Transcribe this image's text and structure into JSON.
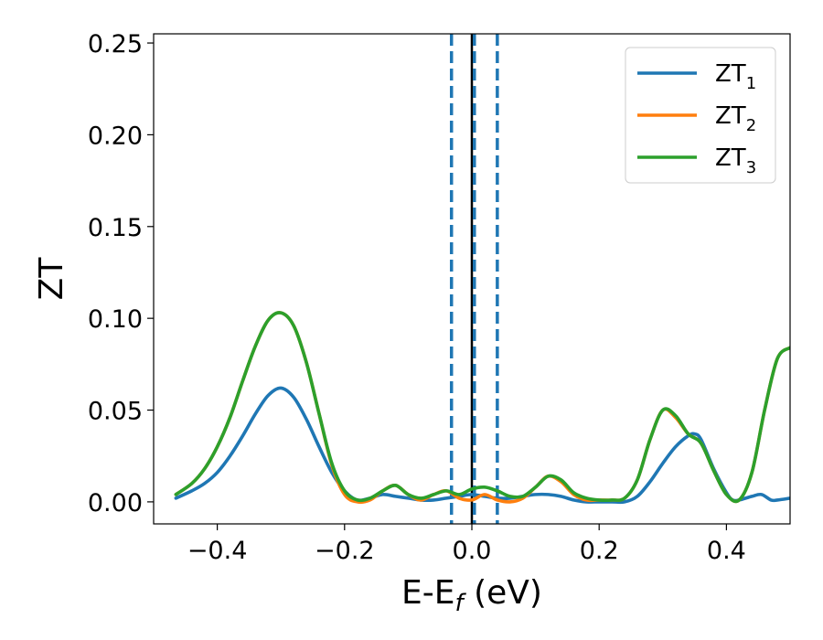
{
  "chart_data": {
    "type": "line",
    "title": "",
    "xlabel": {
      "base": "E-E",
      "sub": "f",
      "unit": " (eV)"
    },
    "ylabel": "ZT",
    "xlim": [
      -0.5,
      0.5
    ],
    "ylim": [
      -0.012,
      0.255
    ],
    "x_ticks": [
      -0.4,
      -0.2,
      0.0,
      0.2,
      0.4
    ],
    "x_tick_labels": [
      "−0.4",
      "−0.2",
      "0.0",
      "0.2",
      "0.4"
    ],
    "y_ticks": [
      0.0,
      0.05,
      0.1,
      0.15,
      0.2,
      0.25
    ],
    "y_tick_labels": [
      "0.00",
      "0.05",
      "0.10",
      "0.15",
      "0.20",
      "0.25"
    ],
    "grid": false,
    "legend_position": "top-right",
    "vertical_lines": [
      {
        "x": -0.032,
        "style": "dashed",
        "color": "#1f77b4"
      },
      {
        "x": 0.0,
        "style": "solid",
        "color": "#000000"
      },
      {
        "x": 0.004,
        "style": "dashed",
        "color": "#1f77b4"
      },
      {
        "x": 0.04,
        "style": "dashed",
        "color": "#1f77b4"
      }
    ],
    "series": [
      {
        "name": "ZT",
        "sub": "1",
        "color": "#1f77b4",
        "x": [
          -0.465,
          -0.44,
          -0.42,
          -0.4,
          -0.38,
          -0.36,
          -0.34,
          -0.32,
          -0.3,
          -0.28,
          -0.26,
          -0.24,
          -0.22,
          -0.2,
          -0.18,
          -0.16,
          -0.14,
          -0.12,
          -0.1,
          -0.08,
          -0.06,
          -0.04,
          -0.02,
          0.0,
          0.02,
          0.04,
          0.06,
          0.08,
          0.1,
          0.12,
          0.14,
          0.16,
          0.18,
          0.2,
          0.22,
          0.24,
          0.26,
          0.28,
          0.3,
          0.32,
          0.34,
          0.35,
          0.36,
          0.38,
          0.4,
          0.41,
          0.42,
          0.44,
          0.455,
          0.47,
          0.48,
          0.5
        ],
        "y": [
          0.002,
          0.006,
          0.01,
          0.016,
          0.025,
          0.036,
          0.048,
          0.058,
          0.062,
          0.057,
          0.045,
          0.03,
          0.016,
          0.006,
          0.001,
          0.002,
          0.004,
          0.003,
          0.002,
          0.001,
          0.001,
          0.002,
          0.003,
          0.004,
          0.003,
          0.002,
          0.002,
          0.003,
          0.004,
          0.004,
          0.003,
          0.001,
          0.0,
          0.0,
          0.0,
          0.0,
          0.003,
          0.011,
          0.021,
          0.03,
          0.036,
          0.037,
          0.034,
          0.018,
          0.005,
          0.001,
          0.001,
          0.003,
          0.004,
          0.001,
          0.001,
          0.002
        ]
      },
      {
        "name": "ZT",
        "sub": "2",
        "color": "#ff7f0e",
        "x": [
          -0.465,
          -0.44,
          -0.42,
          -0.4,
          -0.38,
          -0.36,
          -0.34,
          -0.32,
          -0.3,
          -0.28,
          -0.26,
          -0.24,
          -0.22,
          -0.2,
          -0.18,
          -0.16,
          -0.14,
          -0.12,
          -0.1,
          -0.08,
          -0.06,
          -0.04,
          -0.02,
          0.0,
          0.02,
          0.04,
          0.06,
          0.08,
          0.1,
          0.12,
          0.14,
          0.16,
          0.18,
          0.2,
          0.22,
          0.24,
          0.26,
          0.28,
          0.3,
          0.32,
          0.34,
          0.36,
          0.38,
          0.4,
          0.42,
          0.44,
          0.46,
          0.48,
          0.5
        ],
        "y": [
          0.004,
          0.01,
          0.018,
          0.03,
          0.046,
          0.066,
          0.085,
          0.099,
          0.103,
          0.096,
          0.076,
          0.048,
          0.02,
          0.004,
          0.0,
          0.001,
          0.006,
          0.009,
          0.004,
          0.001,
          0.004,
          0.006,
          0.002,
          0.001,
          0.004,
          0.001,
          0.0,
          0.002,
          0.008,
          0.014,
          0.011,
          0.004,
          0.001,
          0.001,
          0.001,
          0.002,
          0.012,
          0.034,
          0.05,
          0.046,
          0.037,
          0.032,
          0.017,
          0.004,
          0.001,
          0.016,
          0.05,
          0.078,
          0.084
        ]
      },
      {
        "name": "ZT",
        "sub": "3",
        "color": "#2ca02c",
        "x": [
          -0.465,
          -0.44,
          -0.42,
          -0.4,
          -0.38,
          -0.36,
          -0.34,
          -0.32,
          -0.3,
          -0.28,
          -0.26,
          -0.24,
          -0.22,
          -0.2,
          -0.18,
          -0.16,
          -0.14,
          -0.12,
          -0.1,
          -0.08,
          -0.06,
          -0.04,
          -0.02,
          0.0,
          0.02,
          0.04,
          0.06,
          0.08,
          0.1,
          0.12,
          0.14,
          0.16,
          0.18,
          0.2,
          0.22,
          0.24,
          0.26,
          0.28,
          0.3,
          0.32,
          0.34,
          0.36,
          0.38,
          0.4,
          0.42,
          0.44,
          0.46,
          0.48,
          0.5
        ],
        "y": [
          0.004,
          0.01,
          0.018,
          0.03,
          0.046,
          0.066,
          0.085,
          0.099,
          0.103,
          0.096,
          0.076,
          0.048,
          0.021,
          0.006,
          0.001,
          0.002,
          0.006,
          0.009,
          0.004,
          0.002,
          0.004,
          0.006,
          0.004,
          0.007,
          0.008,
          0.006,
          0.003,
          0.003,
          0.008,
          0.014,
          0.012,
          0.005,
          0.002,
          0.001,
          0.001,
          0.002,
          0.012,
          0.034,
          0.05,
          0.047,
          0.037,
          0.032,
          0.017,
          0.004,
          0.001,
          0.016,
          0.05,
          0.078,
          0.084
        ]
      }
    ]
  }
}
